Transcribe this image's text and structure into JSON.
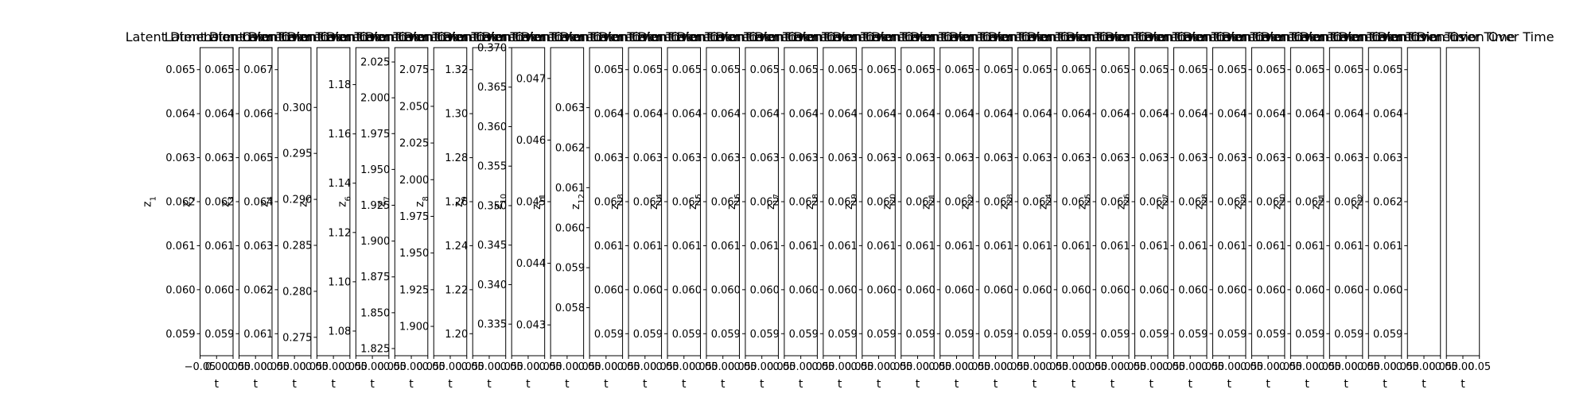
{
  "figure": {
    "panel_title": "Latent Dimension Over Time"
  },
  "chart_data": {
    "type": "line",
    "panels": [
      {
        "name": "z_1",
        "ylabel": "z",
        "ylabel_sub": "1",
        "ylim": [
          0.0585,
          0.0655
        ],
        "yticks": [
          "0.059",
          "0.060",
          "0.061",
          "0.062",
          "0.063",
          "0.064",
          "0.065"
        ],
        "xlim": [
          -0.05,
          0.05
        ],
        "xticks": [
          "−0.05",
          "0.00",
          "0.05"
        ],
        "xlabel": "t"
      },
      {
        "name": "z_2",
        "ylabel": "z",
        "ylabel_sub": "2",
        "ylim": [
          0.0585,
          0.0655
        ],
        "yticks": [
          "0.059",
          "0.060",
          "0.061",
          "0.062",
          "0.063",
          "0.064",
          "0.065"
        ],
        "xlim": [
          -0.05,
          0.05
        ],
        "xticks": [
          "0.05",
          "0.00",
          "0.05"
        ],
        "xlabel": "t"
      },
      {
        "name": "z_3",
        "ylabel": "z",
        "ylabel_sub": "3",
        "ylim": [
          0.0605,
          0.0675
        ],
        "yticks": [
          "0.061",
          "0.062",
          "0.063",
          "0.064",
          "0.065",
          "0.066",
          "0.067"
        ],
        "xlim": [
          -0.05,
          0.05
        ],
        "xticks": [
          "0.05",
          "0.00",
          "0.05"
        ],
        "xlabel": "t"
      },
      {
        "name": "z_4",
        "ylabel": "z",
        "ylabel_sub": "4",
        "ylim": [
          0.273,
          0.3065
        ],
        "yticks": [
          "0.275",
          "0.280",
          "0.285",
          "0.290",
          "0.295",
          "0.300"
        ],
        "xlim": [
          -0.05,
          0.05
        ],
        "xticks": [
          "0.05",
          "0.00",
          "0.05"
        ],
        "xlabel": "t"
      },
      {
        "name": "z_5",
        "ylabel": "z",
        "ylabel_sub": "5",
        "ylim": [
          1.07,
          1.195
        ],
        "yticks": [
          "1.08",
          "1.10",
          "1.12",
          "1.14",
          "1.16",
          "1.18"
        ],
        "xlim": [
          -0.05,
          0.05
        ],
        "xticks": [
          "0.05",
          "0.00",
          "0.05"
        ],
        "xlabel": "t"
      },
      {
        "name": "z_6",
        "ylabel": "z",
        "ylabel_sub": "6",
        "ylim": [
          1.82,
          2.035
        ],
        "yticks": [
          "1.825",
          "1.850",
          "1.875",
          "1.900",
          "1.925",
          "1.950",
          "1.975",
          "2.000",
          "2.025"
        ],
        "xlim": [
          -0.05,
          0.05
        ],
        "xticks": [
          "0.05",
          "0.00",
          "0.05"
        ],
        "xlabel": "t"
      },
      {
        "name": "z_7",
        "ylabel": "z",
        "ylabel_sub": "7",
        "ylim": [
          1.88,
          2.09
        ],
        "yticks": [
          "1.900",
          "1.925",
          "1.950",
          "1.975",
          "2.000",
          "2.025",
          "2.050",
          "2.075"
        ],
        "xlim": [
          -0.05,
          0.05
        ],
        "xticks": [
          "0.05",
          "0.00",
          "0.05"
        ],
        "xlabel": "t"
      },
      {
        "name": "z_8",
        "ylabel": "z",
        "ylabel_sub": "8",
        "ylim": [
          1.19,
          1.33
        ],
        "yticks": [
          "1.20",
          "1.22",
          "1.24",
          "1.26",
          "1.28",
          "1.30",
          "1.32"
        ],
        "xlim": [
          -0.05,
          0.05
        ],
        "xticks": [
          "0.05",
          "0.00",
          "0.05"
        ],
        "xlabel": "t"
      },
      {
        "name": "z_9",
        "ylabel": "z",
        "ylabel_sub": "9",
        "ylim": [
          0.331,
          0.37
        ],
        "yticks": [
          "0.335",
          "0.340",
          "0.345",
          "0.350",
          "0.355",
          "0.360",
          "0.365",
          "0.370"
        ],
        "xlim": [
          -0.05,
          0.05
        ],
        "xticks": [
          "0.05",
          "0.00",
          "0.05"
        ],
        "xlabel": "t"
      },
      {
        "name": "z_10",
        "ylabel": "z",
        "ylabel_sub": "10",
        "ylim": [
          0.0425,
          0.0475
        ],
        "yticks": [
          "0.043",
          "0.044",
          "0.045",
          "0.046",
          "0.047"
        ],
        "xlim": [
          -0.05,
          0.05
        ],
        "xticks": [
          "0.05",
          "0.00",
          "0.05"
        ],
        "xlabel": "t"
      },
      {
        "name": "z_11",
        "ylabel": "z",
        "ylabel_sub": "11",
        "ylim": [
          0.0568,
          0.0645
        ],
        "yticks": [
          "0.058",
          "0.059",
          "0.060",
          "0.061",
          "0.062",
          "0.063"
        ],
        "xlim": [
          -0.05,
          0.05
        ],
        "xticks": [
          "0.05",
          "0.00",
          "0.05"
        ],
        "xlabel": "t"
      },
      {
        "name": "z_12",
        "ylabel": "z",
        "ylabel_sub": "12",
        "ylim": [
          0.0585,
          0.0655
        ],
        "yticks": [
          "0.059",
          "0.060",
          "0.061",
          "0.062",
          "0.063",
          "0.064",
          "0.065"
        ],
        "xlim": [
          -0.05,
          0.05
        ],
        "xticks": [
          "0.05",
          "0.00",
          "0.05"
        ],
        "xlabel": "t"
      },
      {
        "name": "z_13",
        "ylabel": "z",
        "ylabel_sub": "13",
        "ylim": [
          0.0585,
          0.0655
        ],
        "yticks": [
          "0.059",
          "0.060",
          "0.061",
          "0.062",
          "0.063",
          "0.064",
          "0.065"
        ],
        "xlim": [
          -0.05,
          0.05
        ],
        "xticks": [
          "0.05",
          "0.00",
          "0.05"
        ],
        "xlabel": "t"
      },
      {
        "name": "z_14",
        "ylabel": "z",
        "ylabel_sub": "14",
        "ylim": [
          0.0585,
          0.0655
        ],
        "yticks": [
          "0.059",
          "0.060",
          "0.061",
          "0.062",
          "0.063",
          "0.064",
          "0.065"
        ],
        "xlim": [
          -0.05,
          0.05
        ],
        "xticks": [
          "0.05",
          "0.00",
          "0.05"
        ],
        "xlabel": "t"
      },
      {
        "name": "z_15",
        "ylabel": "z",
        "ylabel_sub": "15",
        "ylim": [
          0.0585,
          0.0655
        ],
        "yticks": [
          "0.059",
          "0.060",
          "0.061",
          "0.062",
          "0.063",
          "0.064",
          "0.065"
        ],
        "xlim": [
          -0.05,
          0.05
        ],
        "xticks": [
          "0.05",
          "0.00",
          "0.05"
        ],
        "xlabel": "t"
      },
      {
        "name": "z_16",
        "ylabel": "z",
        "ylabel_sub": "16",
        "ylim": [
          0.0585,
          0.0655
        ],
        "yticks": [
          "0.059",
          "0.060",
          "0.061",
          "0.062",
          "0.063",
          "0.064",
          "0.065"
        ],
        "xlim": [
          -0.05,
          0.05
        ],
        "xticks": [
          "0.05",
          "0.00",
          "0.05"
        ],
        "xlabel": "t"
      },
      {
        "name": "z_17",
        "ylabel": "z",
        "ylabel_sub": "17",
        "ylim": [
          0.0585,
          0.0655
        ],
        "yticks": [
          "0.059",
          "0.060",
          "0.061",
          "0.062",
          "0.063",
          "0.064",
          "0.065"
        ],
        "xlim": [
          -0.05,
          0.05
        ],
        "xticks": [
          "0.05",
          "0.00",
          "0.05"
        ],
        "xlabel": "t"
      },
      {
        "name": "z_18",
        "ylabel": "z",
        "ylabel_sub": "18",
        "ylim": [
          0.0585,
          0.0655
        ],
        "yticks": [
          "0.059",
          "0.060",
          "0.061",
          "0.062",
          "0.063",
          "0.064",
          "0.065"
        ],
        "xlim": [
          -0.05,
          0.05
        ],
        "xticks": [
          "0.05",
          "0.00",
          "0.05"
        ],
        "xlabel": "t"
      },
      {
        "name": "z_19",
        "ylabel": "z",
        "ylabel_sub": "19",
        "ylim": [
          0.0585,
          0.0655
        ],
        "yticks": [
          "0.059",
          "0.060",
          "0.061",
          "0.062",
          "0.063",
          "0.064",
          "0.065"
        ],
        "xlim": [
          -0.05,
          0.05
        ],
        "xticks": [
          "0.05",
          "0.00",
          "0.05"
        ],
        "xlabel": "t"
      },
      {
        "name": "z_20",
        "ylabel": "z",
        "ylabel_sub": "20",
        "ylim": [
          0.0585,
          0.0655
        ],
        "yticks": [
          "0.059",
          "0.060",
          "0.061",
          "0.062",
          "0.063",
          "0.064",
          "0.065"
        ],
        "xlim": [
          -0.05,
          0.05
        ],
        "xticks": [
          "0.05",
          "0.00",
          "0.05"
        ],
        "xlabel": "t"
      },
      {
        "name": "z_21",
        "ylabel": "z",
        "ylabel_sub": "21",
        "ylim": [
          0.0585,
          0.0655
        ],
        "yticks": [
          "0.059",
          "0.060",
          "0.061",
          "0.062",
          "0.063",
          "0.064",
          "0.065"
        ],
        "xlim": [
          -0.05,
          0.05
        ],
        "xticks": [
          "0.05",
          "0.00",
          "0.05"
        ],
        "xlabel": "t"
      },
      {
        "name": "z_22",
        "ylabel": "z",
        "ylabel_sub": "22",
        "ylim": [
          0.0585,
          0.0655
        ],
        "yticks": [
          "0.059",
          "0.060",
          "0.061",
          "0.062",
          "0.063",
          "0.064",
          "0.065"
        ],
        "xlim": [
          -0.05,
          0.05
        ],
        "xticks": [
          "0.05",
          "0.00",
          "0.05"
        ],
        "xlabel": "t"
      },
      {
        "name": "z_23",
        "ylabel": "z",
        "ylabel_sub": "23",
        "ylim": [
          0.0585,
          0.0655
        ],
        "yticks": [
          "0.059",
          "0.060",
          "0.061",
          "0.062",
          "0.063",
          "0.064",
          "0.065"
        ],
        "xlim": [
          -0.05,
          0.05
        ],
        "xticks": [
          "0.05",
          "0.00",
          "0.05"
        ],
        "xlabel": "t"
      },
      {
        "name": "z_24",
        "ylabel": "z",
        "ylabel_sub": "24",
        "ylim": [
          0.0585,
          0.0655
        ],
        "yticks": [
          "0.059",
          "0.060",
          "0.061",
          "0.062",
          "0.063",
          "0.064",
          "0.065"
        ],
        "xlim": [
          -0.05,
          0.05
        ],
        "xticks": [
          "0.05",
          "0.00",
          "0.05"
        ],
        "xlabel": "t"
      },
      {
        "name": "z_25",
        "ylabel": "z",
        "ylabel_sub": "25",
        "ylim": [
          0.0585,
          0.0655
        ],
        "yticks": [
          "0.059",
          "0.060",
          "0.061",
          "0.062",
          "0.063",
          "0.064",
          "0.065"
        ],
        "xlim": [
          -0.05,
          0.05
        ],
        "xticks": [
          "0.05",
          "0.00",
          "0.05"
        ],
        "xlabel": "t"
      },
      {
        "name": "z_26",
        "ylabel": "z",
        "ylabel_sub": "26",
        "ylim": [
          0.0585,
          0.0655
        ],
        "yticks": [
          "0.059",
          "0.060",
          "0.061",
          "0.062",
          "0.063",
          "0.064",
          "0.065"
        ],
        "xlim": [
          -0.05,
          0.05
        ],
        "xticks": [
          "0.05",
          "0.00",
          "0.05"
        ],
        "xlabel": "t"
      },
      {
        "name": "z_27",
        "ylabel": "z",
        "ylabel_sub": "27",
        "ylim": [
          0.0585,
          0.0655
        ],
        "yticks": [
          "0.059",
          "0.060",
          "0.061",
          "0.062",
          "0.063",
          "0.064",
          "0.065"
        ],
        "xlim": [
          -0.05,
          0.05
        ],
        "xticks": [
          "0.05",
          "0.00",
          "0.05"
        ],
        "xlabel": "t"
      },
      {
        "name": "z_28",
        "ylabel": "z",
        "ylabel_sub": "28",
        "ylim": [
          0.0585,
          0.0655
        ],
        "yticks": [
          "0.059",
          "0.060",
          "0.061",
          "0.062",
          "0.063",
          "0.064",
          "0.065"
        ],
        "xlim": [
          -0.05,
          0.05
        ],
        "xticks": [
          "0.05",
          "0.00",
          "0.05"
        ],
        "xlabel": "t"
      },
      {
        "name": "z_29",
        "ylabel": "z",
        "ylabel_sub": "29",
        "ylim": [
          0.0585,
          0.0655
        ],
        "yticks": [
          "0.059",
          "0.060",
          "0.061",
          "0.062",
          "0.063",
          "0.064",
          "0.065"
        ],
        "xlim": [
          -0.05,
          0.05
        ],
        "xticks": [
          "0.05",
          "0.00",
          "0.05"
        ],
        "xlabel": "t"
      },
      {
        "name": "z_30",
        "ylabel": "z",
        "ylabel_sub": "30",
        "ylim": [
          0.0585,
          0.0655
        ],
        "yticks": [
          "0.059",
          "0.060",
          "0.061",
          "0.062",
          "0.063",
          "0.064",
          "0.065"
        ],
        "xlim": [
          -0.05,
          0.05
        ],
        "xticks": [
          "0.05",
          "0.00",
          "0.05"
        ],
        "xlabel": "t"
      },
      {
        "name": "z_31",
        "ylabel": "z",
        "ylabel_sub": "31",
        "ylim": [
          0.0585,
          0.0655
        ],
        "yticks": [
          "0.059",
          "0.060",
          "0.061",
          "0.062",
          "0.063",
          "0.064",
          "0.065"
        ],
        "xlim": [
          -0.05,
          0.05
        ],
        "xticks": [
          "0.05",
          "0.00",
          "0.05"
        ],
        "xlabel": "t"
      },
      {
        "name": "z_32",
        "ylabel": "z",
        "ylabel_sub": "32",
        "ylim": [
          0.0585,
          0.0655
        ],
        "yticks": [
          "0.059",
          "0.060",
          "0.061",
          "0.062",
          "0.063",
          "0.064",
          "0.065"
        ],
        "xlim": [
          -0.05,
          0.05
        ],
        "xticks": [
          "0.05",
          "0.00",
          "0.05"
        ],
        "xlabel": "t"
      },
      {
        "name": "panel_33",
        "ylabel": "",
        "ylabel_sub": "",
        "ylim": [
          0,
          1
        ],
        "yticks": [],
        "xlim": [
          -0.05,
          0.05
        ],
        "xticks": [
          "0.05",
          "0.00",
          "0.05"
        ],
        "xlabel": "t"
      }
    ]
  }
}
